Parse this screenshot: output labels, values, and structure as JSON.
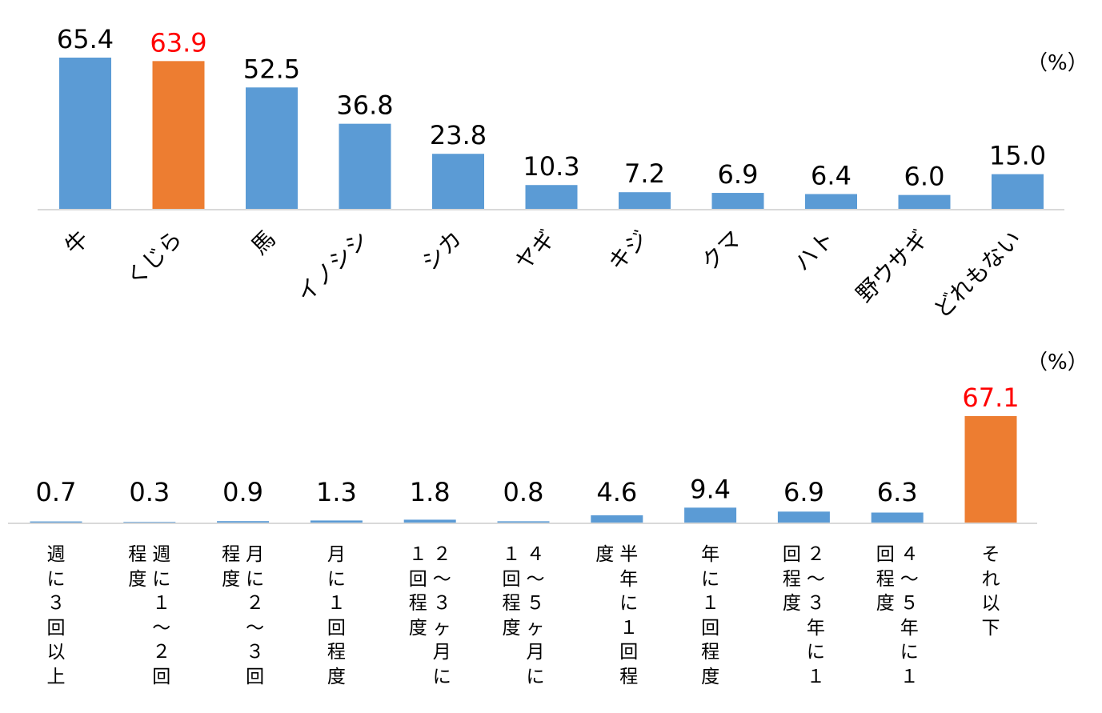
{
  "colors": {
    "bar": "#5B9BD5",
    "highlight": "#ED7D31",
    "highlight_text": "#FF0000",
    "axis": "#D9D9D9",
    "text": "#000000"
  },
  "chart_data": [
    {
      "type": "bar",
      "unit": "（%）",
      "categories": [
        "牛",
        "くじら",
        "馬",
        "イノシシ",
        "シカ",
        "ヤギ",
        "キジ",
        "クマ",
        "ハト",
        "野ウサギ",
        "どれもない"
      ],
      "values": [
        65.4,
        63.9,
        52.5,
        36.8,
        23.8,
        10.3,
        7.2,
        6.9,
        6.4,
        6.0,
        15.0
      ],
      "value_labels": [
        "65.4",
        "63.9",
        "52.5",
        "36.8",
        "23.8",
        "10.3",
        "7.2",
        "6.9",
        "6.4",
        "6.0",
        "15.0"
      ],
      "highlight_index": 1,
      "ylim": [
        0,
        65.4
      ],
      "grid": false,
      "legend": "none"
    },
    {
      "type": "bar",
      "unit": "（%）",
      "categories": [
        "週に３回以上",
        "週に１～２回程度",
        "月に２～３回程度",
        "月に１回程度",
        "２～３ヶ月に１回程度",
        "４～５ヶ月に１回程度",
        "半年に１回程度",
        "年に１回程度",
        "２～３年に１回程度",
        "４～５年に１回程度",
        "それ以下"
      ],
      "label_columns": [
        [
          "週に３回以上"
        ],
        [
          "週に１～２回",
          "程度"
        ],
        [
          "月に２～３回",
          "程度"
        ],
        [
          "月に１回程度"
        ],
        [
          "２～３ヶ月に",
          "１回程度"
        ],
        [
          "４～５ヶ月に",
          "１回程度"
        ],
        [
          "半年に１回程",
          "度"
        ],
        [
          "年に１回程度"
        ],
        [
          "２～３年に１",
          "回程度"
        ],
        [
          "４～５年に１",
          "回程度"
        ],
        [
          "それ以下"
        ]
      ],
      "values": [
        0.7,
        0.3,
        0.9,
        1.3,
        1.8,
        0.8,
        4.6,
        9.4,
        6.9,
        6.3,
        67.1
      ],
      "value_labels": [
        "0.7",
        "0.3",
        "0.9",
        "1.3",
        "1.8",
        "0.8",
        "4.6",
        "9.4",
        "6.9",
        "6.3",
        "67.1"
      ],
      "highlight_index": 10,
      "ylim": [
        0,
        67.1
      ],
      "grid": false,
      "legend": "none"
    }
  ]
}
